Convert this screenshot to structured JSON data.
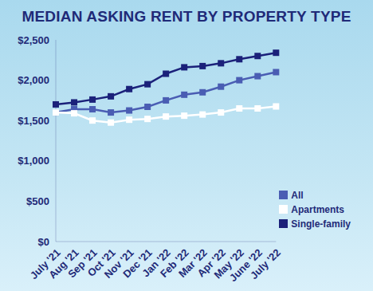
{
  "chart_data": {
    "type": "line",
    "title": "MEDIAN ASKING RENT BY PROPERTY TYPE",
    "categories": [
      "July '21",
      "Aug '21",
      "Sep '21",
      "Oct '21",
      "Nov '21",
      "Dec '21",
      "Jan '22",
      "Feb '22",
      "Mar '22",
      "Apr '22",
      "May '22",
      "June '22",
      "July '22"
    ],
    "series": [
      {
        "name": "Single-family",
        "color": "#1b217a",
        "marker": "square",
        "line_style": "solid",
        "values": [
          1700,
          1725,
          1760,
          1800,
          1890,
          1950,
          2080,
          2160,
          2175,
          2210,
          2260,
          2300,
          2340
        ]
      },
      {
        "name": "All",
        "color": "#4a5db3",
        "marker": "square",
        "line_style": "solid",
        "values": [
          1600,
          1640,
          1640,
          1600,
          1625,
          1670,
          1750,
          1820,
          1850,
          1920,
          2000,
          2050,
          2100
        ]
      },
      {
        "name": "Apartments",
        "color": "#ffffff",
        "marker": "square",
        "line_style": "solid",
        "values": [
          1600,
          1590,
          1500,
          1475,
          1510,
          1520,
          1550,
          1560,
          1575,
          1600,
          1650,
          1650,
          1675
        ]
      }
    ],
    "ylim": [
      0,
      2500
    ],
    "yticks": [
      {
        "value": 0,
        "label": "$0"
      },
      {
        "value": 500,
        "label": "$500"
      },
      {
        "value": 1000,
        "label": "$1,000"
      },
      {
        "value": 1500,
        "label": "$1,500"
      },
      {
        "value": 2000,
        "label": "$2,000"
      },
      {
        "value": 2500,
        "label": "$2,500"
      }
    ],
    "grid": false,
    "legend": "right"
  }
}
